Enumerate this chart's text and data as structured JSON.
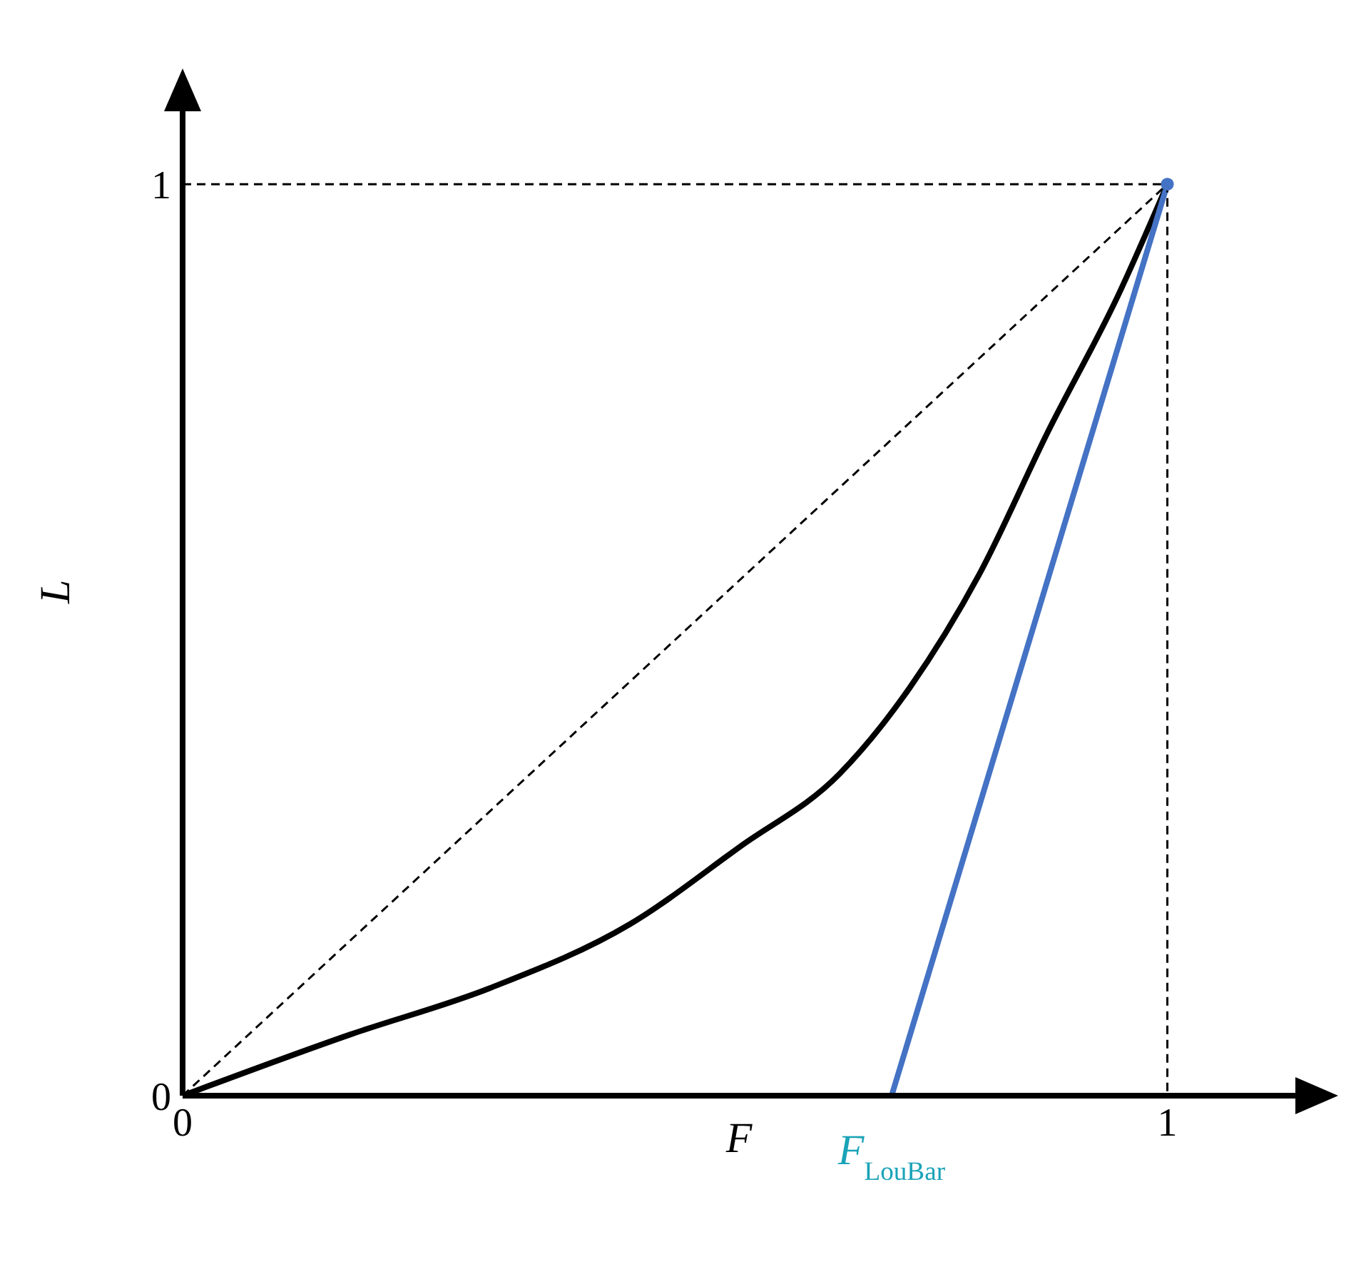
{
  "chart_data": {
    "type": "line",
    "xlabel": "F",
    "ylabel": "L",
    "xlim": [
      0,
      1.13
    ],
    "ylim": [
      0,
      1.08
    ],
    "xticks": [
      0,
      1
    ],
    "yticks": [
      0,
      1
    ],
    "grid": false,
    "marker": "none",
    "series": [
      {
        "type": "line",
        "color": "#000000",
        "x": [
          0,
          0.17,
          0.312,
          0.454,
          0.567,
          0.667,
          0.738,
          0.809,
          0.879,
          0.95,
          1
        ],
        "values": [
          0,
          0.067,
          0.118,
          0.188,
          0.274,
          0.353,
          0.447,
          0.572,
          0.729,
          0.878,
          1
        ]
      },
      {
        "type": "line",
        "color": "#4472c4",
        "x": [
          0.72,
          1
        ],
        "values": [
          0,
          1
        ]
      },
      {
        "type": "line",
        "color": "#000000",
        "line_style": "dashed",
        "x": [
          0,
          1
        ],
        "values": [
          0,
          1
        ]
      },
      {
        "type": "line",
        "color": "#000000",
        "line_style": "dashed",
        "x": [
          0,
          1,
          1
        ],
        "values": [
          1,
          1,
          0
        ]
      },
      {
        "type": "scatter",
        "color": "#4472c4",
        "marker": "circle",
        "x": [
          1
        ],
        "values": [
          1
        ]
      }
    ],
    "annotations": [
      {
        "text": "F$_{LouBar}$",
        "x": 0.72,
        "y": 0
      }
    ]
  }
}
